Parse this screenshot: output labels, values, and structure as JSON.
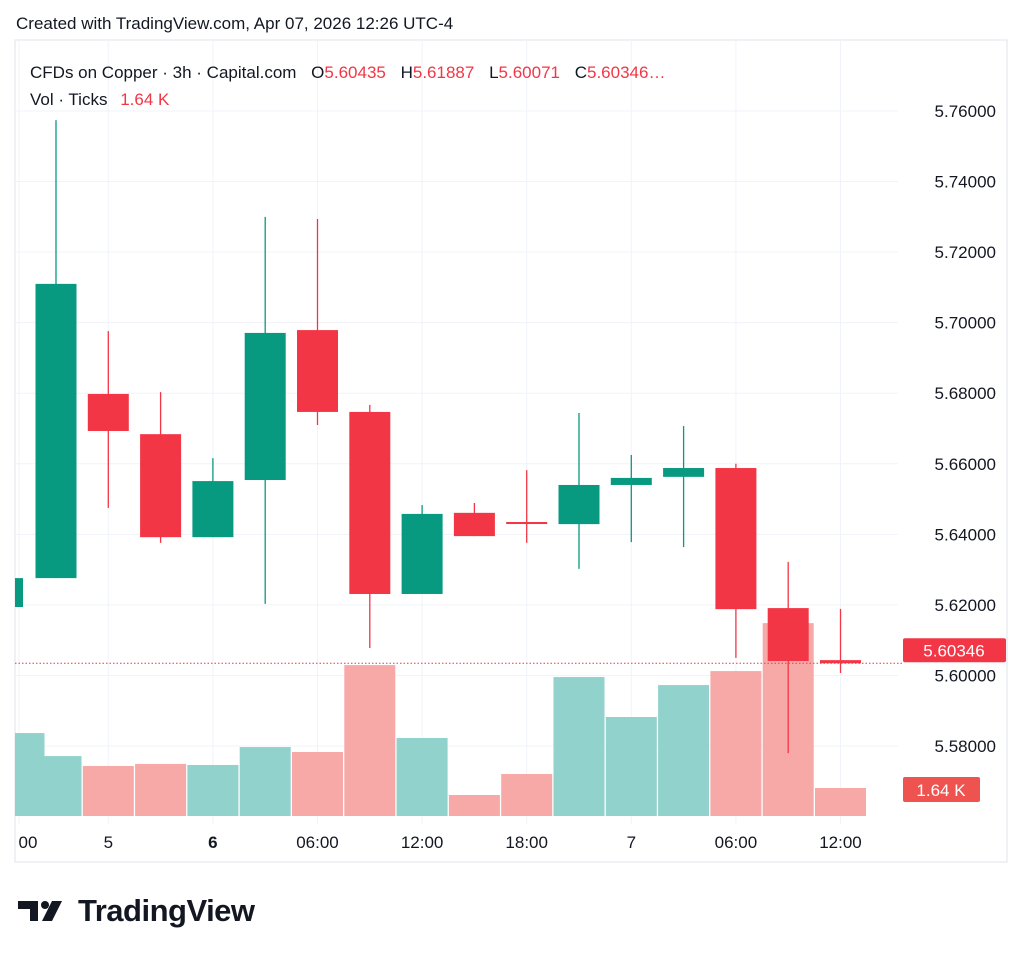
{
  "header": {
    "created": "Created with TradingView.com, Apr 07, 2026 12:26 UTC-4"
  },
  "legend": {
    "symbol": "CFDs on Copper · 3h · Capital.com",
    "o_label": "O",
    "o": "5.60435",
    "h_label": "H",
    "h": "5.61887",
    "l_label": "L",
    "l": "5.60071",
    "c_label": "C",
    "c": "5.60346…",
    "vol_label": "Vol · Ticks",
    "vol": "1.64 K"
  },
  "logo": {
    "text": "TradingView"
  },
  "colors": {
    "up": "#089981",
    "down": "#f23645",
    "up_vol": "#92d2cc",
    "down_vol": "#f7a9a7",
    "grid": "#f0f3fa"
  },
  "chart_data": {
    "type": "candlestick",
    "title": "CFDs on Copper · 3h · Capital.com",
    "y_ticks": [
      "5.76000",
      "5.74000",
      "5.72000",
      "5.70000",
      "5.68000",
      "5.66000",
      "5.64000",
      "5.62000",
      "5.60000",
      "5.58000"
    ],
    "ylim": [
      5.58,
      5.76
    ],
    "x_ticks": [
      {
        "label": "00",
        "index": 0,
        "bold": false
      },
      {
        "label": "5",
        "index": 2,
        "bold": false
      },
      {
        "label": "6",
        "index": 4,
        "bold": true
      },
      {
        "label": "06:00",
        "index": 6,
        "bold": false
      },
      {
        "label": "12:00",
        "index": 8,
        "bold": false
      },
      {
        "label": "18:00",
        "index": 10,
        "bold": false
      },
      {
        "label": "7",
        "index": 12,
        "bold": false
      },
      {
        "label": "06:00",
        "index": 14,
        "bold": false
      },
      {
        "label": "12:00",
        "index": 16,
        "bold": false
      }
    ],
    "last_price_label": "5.60346",
    "last_price": 5.60346,
    "last_volume_label": "1.64 K",
    "candles": [
      {
        "o": 5.6194,
        "h": 5.6276,
        "l": 5.6194,
        "c": 5.6276,
        "v": 4.86
      },
      {
        "o": 5.6276,
        "h": 5.7574,
        "l": 5.6276,
        "c": 5.711,
        "v": 3.51
      },
      {
        "o": 5.6798,
        "h": 5.6976,
        "l": 5.6475,
        "c": 5.6693,
        "v": 2.93
      },
      {
        "o": 5.6684,
        "h": 5.6803,
        "l": 5.6376,
        "c": 5.6392,
        "v": 3.05
      },
      {
        "o": 5.6392,
        "h": 5.6616,
        "l": 5.6392,
        "c": 5.6551,
        "v": 2.99
      },
      {
        "o": 5.6554,
        "h": 5.73,
        "l": 5.6203,
        "c": 5.6971,
        "v": 4.04
      },
      {
        "o": 5.6979,
        "h": 5.7294,
        "l": 5.671,
        "c": 5.6747,
        "v": 3.75
      },
      {
        "o": 5.6747,
        "h": 5.6767,
        "l": 5.6078,
        "c": 5.6231,
        "v": 8.84
      },
      {
        "o": 5.6231,
        "h": 5.6483,
        "l": 5.6231,
        "c": 5.6458,
        "v": 4.57
      },
      {
        "o": 5.6461,
        "h": 5.6489,
        "l": 5.6395,
        "c": 5.6395,
        "v": 1.23
      },
      {
        "o": 5.6435,
        "h": 5.6582,
        "l": 5.6376,
        "c": 5.6432,
        "v": 2.46
      },
      {
        "o": 5.6429,
        "h": 5.6744,
        "l": 5.6302,
        "c": 5.654,
        "v": 8.14
      },
      {
        "o": 5.654,
        "h": 5.6625,
        "l": 5.6378,
        "c": 5.656,
        "v": 5.8
      },
      {
        "o": 5.6563,
        "h": 5.6707,
        "l": 5.6364,
        "c": 5.6588,
        "v": 7.67
      },
      {
        "o": 5.6588,
        "h": 5.66,
        "l": 5.605,
        "c": 5.6188,
        "v": 8.49
      },
      {
        "o": 5.6191,
        "h": 5.6322,
        "l": 5.578,
        "c": 5.6041,
        "v": 11.3
      },
      {
        "o": 5.60435,
        "h": 5.61887,
        "l": 5.60071,
        "c": 5.60346,
        "v": 1.64
      }
    ]
  }
}
